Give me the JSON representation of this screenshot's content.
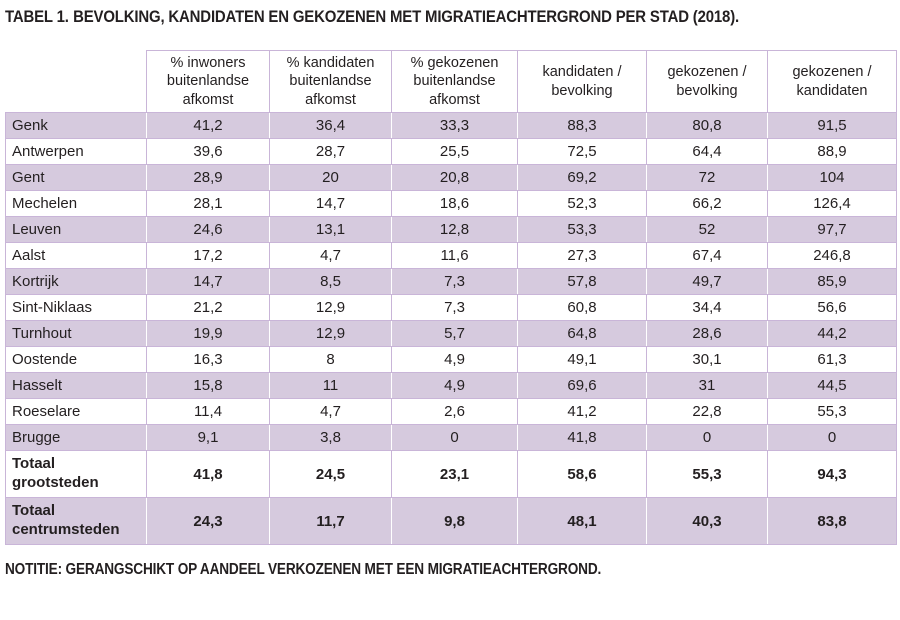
{
  "title": {
    "prefix": "TABEL 1.",
    "text": "BEVOLKING, KANDIDATEN EN GEKOZENEN MET MIGRATIEACHTERGROND PER STAD (2018)."
  },
  "table": {
    "columns": [
      "% inwoners buitenlandse afkomst",
      "% kandidaten buitenlandse afkomst",
      "% gekozenen buitenlandse afkomst",
      "kandidaten / bevolking",
      "gekozenen / bevolking",
      "gekozenen / kandidaten"
    ],
    "rows": [
      {
        "label": "Genk",
        "values": [
          "41,2",
          "36,4",
          "33,3",
          "88,3",
          "80,8",
          "91,5"
        ]
      },
      {
        "label": "Antwerpen",
        "values": [
          "39,6",
          "28,7",
          "25,5",
          "72,5",
          "64,4",
          "88,9"
        ]
      },
      {
        "label": "Gent",
        "values": [
          "28,9",
          "20",
          "20,8",
          "69,2",
          "72",
          "104"
        ]
      },
      {
        "label": "Mechelen",
        "values": [
          "28,1",
          "14,7",
          "18,6",
          "52,3",
          "66,2",
          "126,4"
        ]
      },
      {
        "label": "Leuven",
        "values": [
          "24,6",
          "13,1",
          "12,8",
          "53,3",
          "52",
          "97,7"
        ]
      },
      {
        "label": "Aalst",
        "values": [
          "17,2",
          "4,7",
          "11,6",
          "27,3",
          "67,4",
          "246,8"
        ]
      },
      {
        "label": "Kortrijk",
        "values": [
          "14,7",
          "8,5",
          "7,3",
          "57,8",
          "49,7",
          "85,9"
        ]
      },
      {
        "label": "Sint-Niklaas",
        "values": [
          "21,2",
          "12,9",
          "7,3",
          "60,8",
          "34,4",
          "56,6"
        ]
      },
      {
        "label": "Turnhout",
        "values": [
          "19,9",
          "12,9",
          "5,7",
          "64,8",
          "28,6",
          "44,2"
        ]
      },
      {
        "label": "Oostende",
        "values": [
          "16,3",
          "8",
          "4,9",
          "49,1",
          "30,1",
          "61,3"
        ]
      },
      {
        "label": "Hasselt",
        "values": [
          "15,8",
          "11",
          "4,9",
          "69,6",
          "31",
          "44,5"
        ]
      },
      {
        "label": "Roeselare",
        "values": [
          "11,4",
          "4,7",
          "2,6",
          "41,2",
          "22,8",
          "55,3"
        ]
      },
      {
        "label": "Brugge",
        "values": [
          "9,1",
          "3,8",
          "0",
          "41,8",
          "0",
          "0"
        ]
      }
    ],
    "totals": [
      {
        "label": "Totaal grootsteden",
        "values": [
          "41,8",
          "24,5",
          "23,1",
          "58,6",
          "55,3",
          "94,3"
        ]
      },
      {
        "label": "Totaal centrumsteden",
        "values": [
          "24,3",
          "11,7",
          "9,8",
          "48,1",
          "40,3",
          "83,8"
        ]
      }
    ]
  },
  "note": "NOTITIE: GERANGSCHIKT OP AANDEEL VERKOZENEN MET EEN MIGRATIEACHTERGROND.",
  "colors": {
    "accent": "#9e6eb5",
    "row_shade": "#d6cade",
    "border": "#c9b5d8",
    "text": "#231f20"
  }
}
